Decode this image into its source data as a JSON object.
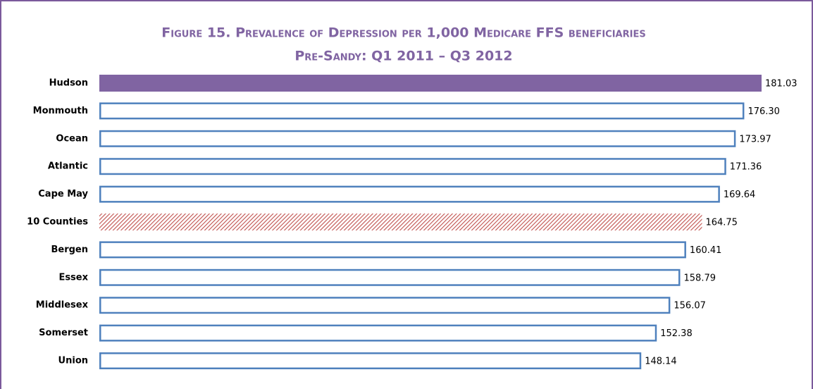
{
  "chart_data": {
    "type": "bar",
    "orientation": "horizontal",
    "title": "Figure 15. Prevalence of Depression per 1,000 Medicare FFS beneficiaries",
    "subtitle": "Pre-Sandy: Q1 2011 – Q3 2012",
    "categories": [
      "Hudson",
      "Monmouth",
      "Ocean",
      "Atlantic",
      "Cape May",
      "10 Counties",
      "Bergen",
      "Essex",
      "Middlesex",
      "Somerset",
      "Union"
    ],
    "values": [
      181.03,
      176.3,
      173.97,
      171.36,
      169.64,
      164.75,
      160.41,
      158.79,
      156.07,
      152.38,
      148.14
    ],
    "value_labels": [
      "181.03",
      "176.30",
      "173.97",
      "171.36",
      "169.64",
      "164.75",
      "160.41",
      "158.79",
      "156.07",
      "152.38",
      "148.14"
    ],
    "bar_styles": [
      "solid",
      "outline",
      "outline",
      "outline",
      "outline",
      "hatched",
      "outline",
      "outline",
      "outline",
      "outline",
      "outline"
    ],
    "colors": [
      "#8064a2",
      "#4f81bd",
      "#4f81bd",
      "#4f81bd",
      "#4f81bd",
      "#c0504d",
      "#4f81bd",
      "#4f81bd",
      "#4f81bd",
      "#4f81bd",
      "#4f81bd"
    ],
    "title_color": "#8064a2"
  }
}
